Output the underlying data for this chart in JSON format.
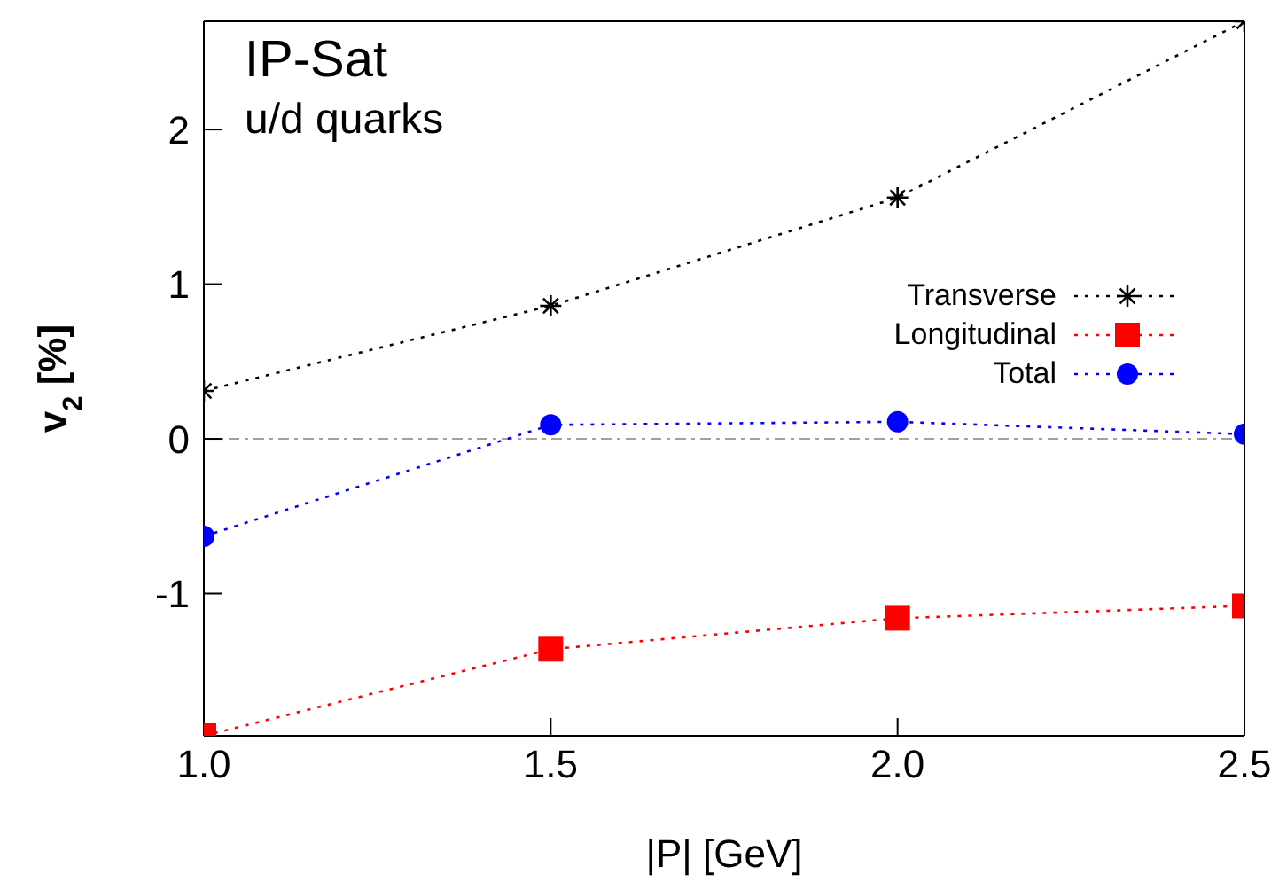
{
  "chart_data": {
    "type": "line",
    "xlabel": "|P| [GeV]",
    "ylabel": "v$_{2}$ [%]",
    "annotations": [
      "IP-Sat",
      "u/d quarks"
    ],
    "x": [
      1.0,
      1.5,
      2.0,
      2.5
    ],
    "series": [
      {
        "name": "Transverse",
        "color": "#000000",
        "marker": "cross",
        "values": [
          0.31,
          0.86,
          1.56,
          2.7
        ]
      },
      {
        "name": "Longitudinal",
        "color": "#ff0000",
        "marker": "square",
        "values": [
          -1.92,
          -1.36,
          -1.16,
          -1.08
        ]
      },
      {
        "name": "Total",
        "color": "#0000ff",
        "marker": "circle",
        "values": [
          -0.63,
          0.09,
          0.11,
          0.03
        ]
      }
    ],
    "xlim": [
      1.0,
      2.5
    ],
    "xticks": [
      {
        "value": 1.0,
        "label": "1.0"
      },
      {
        "value": 1.5,
        "label": "1.5"
      },
      {
        "value": 2.0,
        "label": "2.0"
      },
      {
        "value": 2.5,
        "label": "2.5"
      }
    ],
    "ylim": [
      -1.92,
      2.7
    ],
    "yticks": [
      -1,
      0,
      1,
      2
    ],
    "ref_lines": [
      {
        "axis": "y",
        "value": 0,
        "color": "#a0a0a0",
        "line_style": "dashdot"
      }
    ],
    "line_style": "dotted",
    "legend": "right",
    "grid": false
  }
}
